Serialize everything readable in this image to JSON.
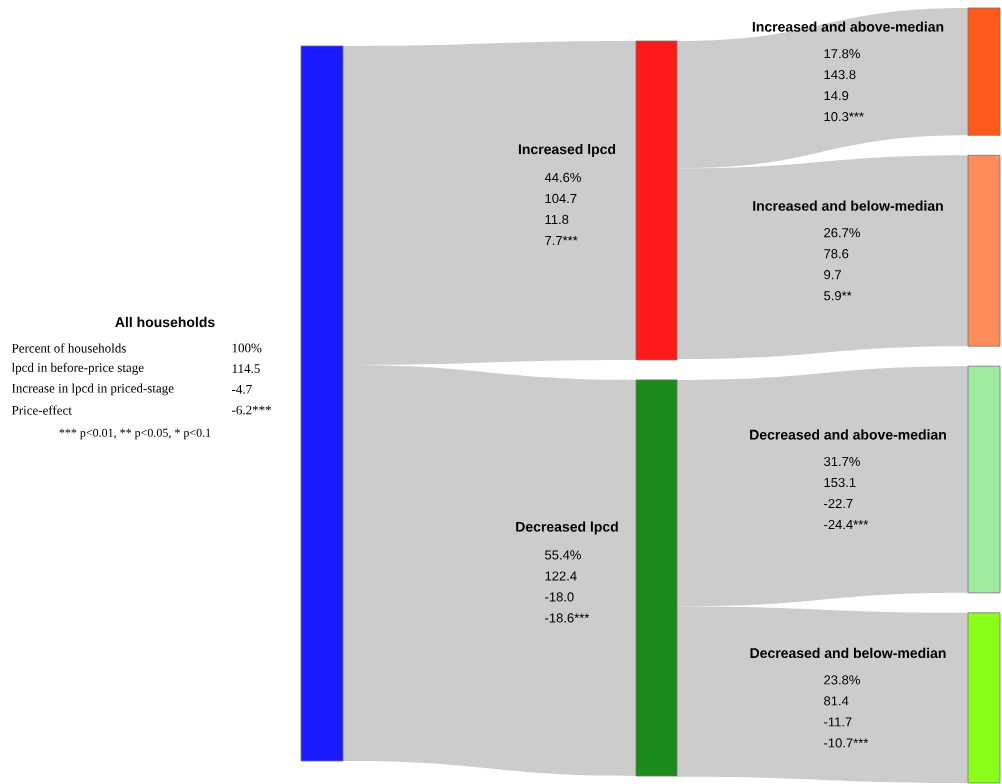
{
  "chart_data": {
    "type": "other",
    "categories": [
      "All households",
      "Increased lpcd",
      "Decreased lpcd",
      "Increased and above-median",
      "Increased and below-median",
      "Decreased and above-median",
      "Decreased and below-median"
    ],
    "colors": [
      "#1a1aff",
      "#ff1a1a",
      "#1a8a1a",
      "#ff5a1a",
      "#ff8c5a",
      "#9eeb9e",
      "#8aff1a"
    ],
    "series": [
      {
        "name": "Percent of households",
        "values": [
          100,
          44.6,
          55.4,
          17.8,
          26.7,
          31.7,
          23.8
        ],
        "value_labels": [
          "100%",
          "44.6%",
          "55.4%",
          "17.8%",
          "26.7%",
          "31.7%",
          "23.8%"
        ]
      },
      {
        "name": "lpcd in before-price stage",
        "values": [
          114.5,
          104.7,
          122.4,
          143.8,
          78.6,
          153.1,
          81.4
        ],
        "value_labels": [
          "114.5",
          "104.7",
          "122.4",
          "143.8",
          "78.6",
          "153.1",
          "81.4"
        ]
      },
      {
        "name": "Increase in lpcd in priced-stage",
        "values": [
          -4.7,
          11.8,
          -18.0,
          14.9,
          9.7,
          -22.7,
          -11.7
        ],
        "value_labels": [
          "-4.7",
          "11.8",
          "-18.0",
          "14.9",
          "9.7",
          "-22.7",
          "-11.7"
        ]
      },
      {
        "name": "Price-effect",
        "values": [
          -6.2,
          7.7,
          -18.6,
          10.3,
          5.9,
          -24.4,
          -10.7
        ],
        "value_labels": [
          "-6.2***",
          "7.7***",
          "-18.6***",
          "10.3***",
          "5.9**",
          "-24.4***",
          "-10.7***"
        ]
      }
    ],
    "annotations": [
      "*** p<0.01, ** p<0.05, * p<0.1"
    ]
  }
}
